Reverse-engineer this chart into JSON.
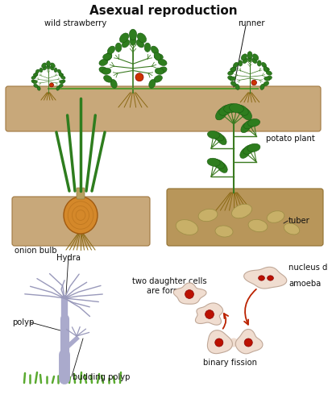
{
  "title": "Asexual reproduction",
  "title_fontsize": 11,
  "title_fontweight": "bold",
  "bg_color": "#ffffff",
  "labels": {
    "wild_strawberry": "wild strawberry",
    "runner": "runner",
    "onion_bulb": "onion bulb",
    "potato_plant": "potato plant",
    "tuber": "tuber",
    "hydra": "Hydra",
    "polyp": "polyp",
    "budding_polyp": "budding polyp",
    "two_daughter": "two daughter cells\nare formed",
    "binary_fission": "binary fission",
    "nucleus_divides": "nucleus divides",
    "amoeba": "amoeba"
  },
  "ground_color": "#c8a87a",
  "ground_color2": "#b8965a",
  "leaf_color": "#2e7d1e",
  "root_color": "#8B6914",
  "cell_fill": "#f0ddd0",
  "cell_red": "#bb1100",
  "arrow_color": "#bb2200",
  "hydra_color": "#9999bb",
  "hydra_body": "#aaaacc",
  "text_color": "#111111",
  "annotation_fontsize": 7.2,
  "line_color": "#333333",
  "runner_color": "#5a9a30",
  "soil_top": "#c8a060",
  "soil_side": "#a07840"
}
